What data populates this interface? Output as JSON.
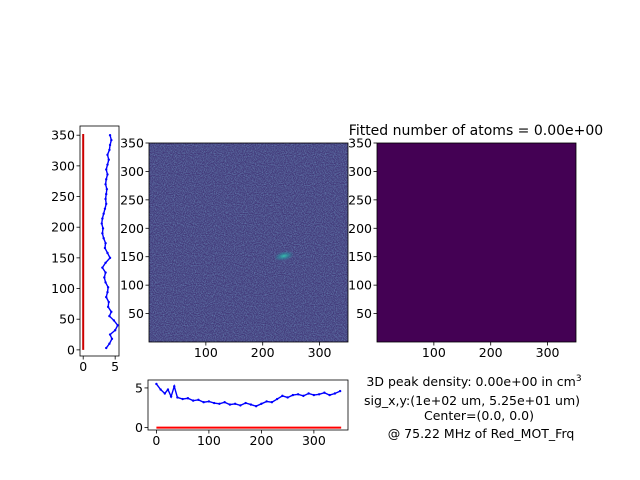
{
  "fitted_title": "Fitted number of atoms = 0.00e+00",
  "info": {
    "peak_density_prefix": "3D peak density: 0.00e+00 in cm",
    "peak_density_exp": "3",
    "sig_line": "sig_x,y:(1e+02 um, 5.25e+01 um)",
    "center_line": "Center=(0.0, 0.0)",
    "freq_line": "@ 75.22 MHz of Red_MOT_Frq"
  },
  "colors": {
    "profile_line": "#0000ff",
    "fit_line": "#ff0000",
    "fit_line_vertical": "#cc0000",
    "fit_image_fill": "#440154",
    "image_background": "#433a7a"
  },
  "chart_data": [
    {
      "type": "line",
      "name": "vertical-profile",
      "xlim": [
        -0.5,
        5.6
      ],
      "ylim": [
        -10,
        365
      ],
      "xticks": [
        "0",
        "5"
      ],
      "yticks": [
        "0",
        "50",
        "100",
        "150",
        "200",
        "250",
        "300",
        "350"
      ],
      "series": [
        {
          "role": "fit",
          "color": "#cc0000",
          "points": [
            [
              0,
              0
            ],
            [
              0,
              352
            ]
          ]
        },
        {
          "role": "data",
          "color": "#0000ff",
          "points": [
            [
              3.6,
              3
            ],
            [
              4.1,
              10
            ],
            [
              4.5,
              18
            ],
            [
              4.2,
              25
            ],
            [
              5.0,
              32
            ],
            [
              5.4,
              40
            ],
            [
              4.8,
              48
            ],
            [
              4.1,
              55
            ],
            [
              4.4,
              62
            ],
            [
              3.9,
              70
            ],
            [
              4.0,
              78
            ],
            [
              3.6,
              86
            ],
            [
              3.8,
              94
            ],
            [
              3.9,
              102
            ],
            [
              3.5,
              110
            ],
            [
              3.3,
              118
            ],
            [
              3.5,
              126
            ],
            [
              3.0,
              134
            ],
            [
              3.5,
              142
            ],
            [
              4.2,
              150
            ],
            [
              3.8,
              158
            ],
            [
              3.4,
              166
            ],
            [
              3.5,
              174
            ],
            [
              3.2,
              182
            ],
            [
              3.0,
              190
            ],
            [
              3.1,
              198
            ],
            [
              2.9,
              206
            ],
            [
              3.0,
              214
            ],
            [
              3.2,
              222
            ],
            [
              3.4,
              230
            ],
            [
              3.6,
              238
            ],
            [
              3.5,
              246
            ],
            [
              3.6,
              254
            ],
            [
              3.7,
              262
            ],
            [
              3.5,
              270
            ],
            [
              3.6,
              278
            ],
            [
              3.8,
              286
            ],
            [
              3.6,
              294
            ],
            [
              3.8,
              302
            ],
            [
              4.0,
              310
            ],
            [
              3.8,
              318
            ],
            [
              4.1,
              326
            ],
            [
              4.2,
              334
            ],
            [
              4.4,
              342
            ],
            [
              4.2,
              350
            ]
          ]
        }
      ]
    },
    {
      "type": "heatmap",
      "name": "absorption-image",
      "xlim": [
        0,
        350
      ],
      "ylim": [
        0,
        350
      ],
      "xticks": [
        "100",
        "200",
        "300"
      ],
      "yticks": [
        "50",
        "100",
        "150",
        "200",
        "250",
        "300",
        "350"
      ],
      "feature": {
        "label": "atom cloud",
        "x": 238,
        "y": 152
      }
    },
    {
      "type": "heatmap",
      "name": "fitted-image",
      "title": "Fitted number of atoms = 0.00e+00",
      "xlim": [
        0,
        350
      ],
      "ylim": [
        0,
        350
      ],
      "xticks": [
        "100",
        "200",
        "300"
      ],
      "yticks": [
        "50",
        "100",
        "150",
        "200",
        "250",
        "300",
        "350"
      ],
      "value": 0
    },
    {
      "type": "line",
      "name": "horizontal-profile",
      "xlim": [
        -16,
        365
      ],
      "ylim": [
        -0.3,
        6
      ],
      "xticks": [
        "0",
        "100",
        "200",
        "300"
      ],
      "yticks": [
        "0",
        "5"
      ],
      "series": [
        {
          "role": "fit",
          "color": "#ff0000",
          "points": [
            [
              0,
              0
            ],
            [
              352,
              0
            ]
          ]
        },
        {
          "role": "data",
          "color": "#0000ff",
          "points": [
            [
              0,
              5.5
            ],
            [
              8,
              4.8
            ],
            [
              16,
              4.3
            ],
            [
              22,
              4.8
            ],
            [
              28,
              3.9
            ],
            [
              34,
              5.2
            ],
            [
              40,
              3.8
            ],
            [
              50,
              3.6
            ],
            [
              60,
              3.7
            ],
            [
              70,
              3.4
            ],
            [
              80,
              3.5
            ],
            [
              90,
              3.2
            ],
            [
              100,
              3.3
            ],
            [
              110,
              3.1
            ],
            [
              120,
              3.0
            ],
            [
              130,
              3.2
            ],
            [
              140,
              2.9
            ],
            [
              150,
              3.0
            ],
            [
              160,
              2.8
            ],
            [
              170,
              3.1
            ],
            [
              180,
              2.9
            ],
            [
              190,
              2.7
            ],
            [
              200,
              3.0
            ],
            [
              210,
              3.3
            ],
            [
              220,
              3.2
            ],
            [
              230,
              3.6
            ],
            [
              240,
              4.0
            ],
            [
              250,
              3.8
            ],
            [
              260,
              4.1
            ],
            [
              270,
              4.2
            ],
            [
              280,
              4.0
            ],
            [
              290,
              4.3
            ],
            [
              300,
              4.1
            ],
            [
              310,
              4.2
            ],
            [
              320,
              4.4
            ],
            [
              330,
              4.1
            ],
            [
              340,
              4.3
            ],
            [
              350,
              4.6
            ]
          ]
        }
      ]
    }
  ]
}
